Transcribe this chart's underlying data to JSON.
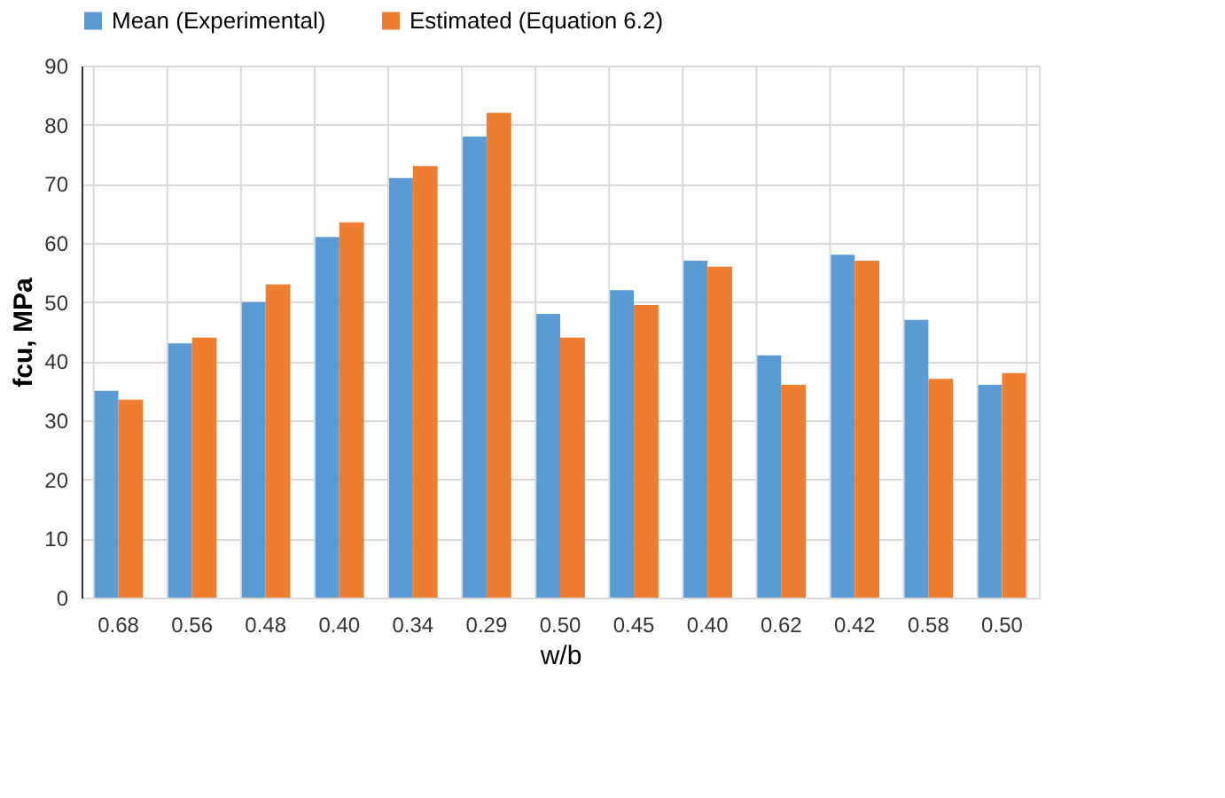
{
  "chart_data": {
    "type": "bar",
    "xlabel": "w/b",
    "ylabel": "fcu, MPa",
    "categories": [
      "0.68",
      "0.56",
      "0.48",
      "0.40",
      "0.34",
      "0.29",
      "0.50",
      "0.45",
      "0.40",
      "0.62",
      "0.42",
      "0.58",
      "0.50"
    ],
    "series": [
      {
        "name": "Mean (Experimental)",
        "color": "#5b9bd5",
        "values": [
          35,
          43,
          50,
          61,
          71,
          78,
          48,
          52,
          57,
          41,
          58,
          47,
          36
        ]
      },
      {
        "name": "Estimated (Equation 6.2)",
        "color": "#ed7d31",
        "values": [
          33.5,
          44,
          53,
          63.5,
          73,
          82,
          44,
          49.5,
          56,
          36,
          57,
          37,
          38
        ]
      }
    ],
    "ylim": [
      0,
      90
    ],
    "yticks": [
      0,
      10,
      20,
      30,
      40,
      50,
      60,
      70,
      80,
      90
    ],
    "grid": true,
    "legend": "top"
  }
}
